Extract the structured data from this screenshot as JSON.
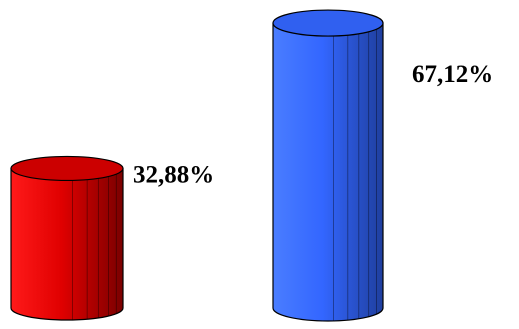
{
  "chart_data": {
    "type": "bar",
    "style": "3d-cylinder",
    "title": "",
    "xlabel": "",
    "ylabel": "",
    "categories": [
      "",
      ""
    ],
    "values": [
      32.88,
      67.12
    ],
    "value_labels": [
      "32,88%",
      "67,12%"
    ],
    "colors": [
      "#e00000",
      "#3366ff"
    ],
    "ylim": [
      0,
      70
    ],
    "grid": false,
    "legend": "none"
  }
}
